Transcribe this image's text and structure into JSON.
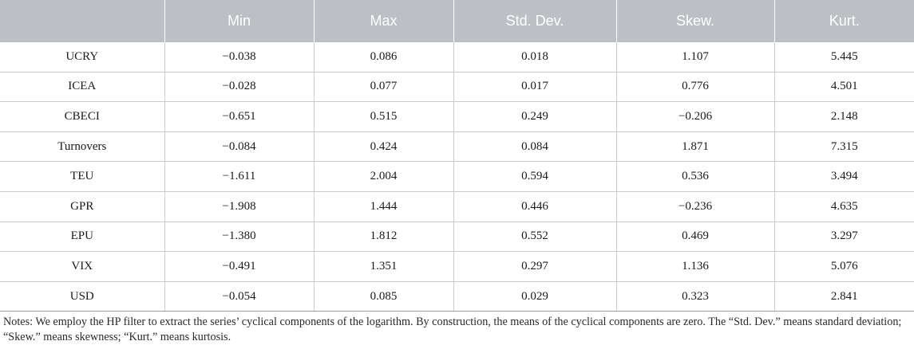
{
  "table": {
    "headers": [
      "",
      "Min",
      "Max",
      "Std. Dev.",
      "Skew.",
      "Kurt."
    ],
    "rows": [
      [
        "UCRY",
        "−0.038",
        "0.086",
        "0.018",
        "1.107",
        "5.445"
      ],
      [
        "ICEA",
        "−0.028",
        "0.077",
        "0.017",
        "0.776",
        "4.501"
      ],
      [
        "CBECI",
        "−0.651",
        "0.515",
        "0.249",
        "−0.206",
        "2.148"
      ],
      [
        "Turnovers",
        "−0.084",
        "0.424",
        "0.084",
        "1.871",
        "7.315"
      ],
      [
        "TEU",
        "−1.611",
        "2.004",
        "0.594",
        "0.536",
        "3.494"
      ],
      [
        "GPR",
        "−1.908",
        "1.444",
        "0.446",
        "−0.236",
        "4.635"
      ],
      [
        "EPU",
        "−1.380",
        "1.812",
        "0.552",
        "0.469",
        "3.297"
      ],
      [
        "VIX",
        "−0.491",
        "1.351",
        "0.297",
        "1.136",
        "5.076"
      ],
      [
        "USD",
        "−0.054",
        "0.085",
        "0.029",
        "0.323",
        "2.841"
      ]
    ]
  },
  "notes": "Notes: We employ the HP filter to extract the series’ cyclical components of the logarithm. By construction, the means of the cyclical components are zero. The “Std. Dev.” means standard deviation; “Skew.” means skewness; “Kurt.” means kurtosis.",
  "colors": {
    "header_bg": "#bcbfc4",
    "header_text": "#ffffff",
    "grid": "#c8cacd"
  }
}
